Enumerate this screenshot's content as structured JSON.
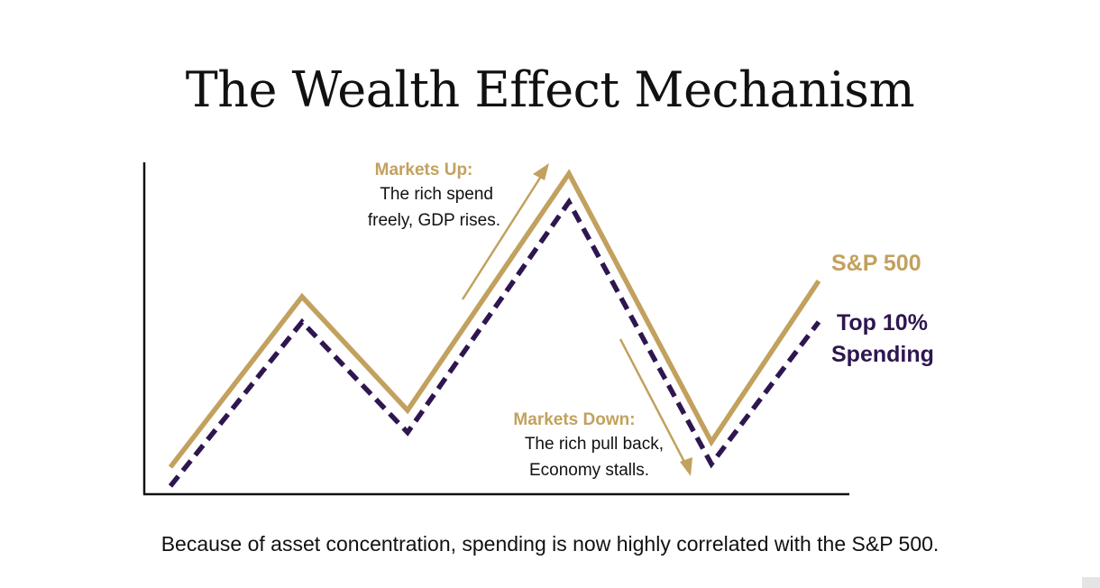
{
  "title": "The Wealth Effect Mechanism",
  "caption": "Because of asset concentration, spending is now highly correlated with the S&P 500.",
  "colors": {
    "sp500": "#C2A15E",
    "spending": "#2E1650",
    "text": "#111111",
    "axis": "#111111"
  },
  "chart_data": {
    "type": "line",
    "series": [
      {
        "name": "S&P 500",
        "style": "solid",
        "values": [
          0.04,
          0.58,
          0.22,
          0.97,
          0.12,
          0.63
        ]
      },
      {
        "name": "Top 10% Spending",
        "style": "dashed",
        "values": [
          -0.02,
          0.5,
          0.15,
          0.88,
          0.05,
          0.5
        ]
      }
    ],
    "legend": [
      {
        "label": "S&P 500",
        "series": "S&P 500"
      },
      {
        "label_lines": [
          "Top 10%",
          "Spending"
        ],
        "series": "Top 10% Spending"
      }
    ],
    "annotations": [
      {
        "id": "markets-up",
        "heading": "Markets Up:",
        "lines": [
          "The rich spend",
          "freely, GDP rises."
        ],
        "arrow": "up"
      },
      {
        "id": "markets-down",
        "heading": "Markets Down:",
        "lines": [
          "The rich pull back,",
          "Economy stalls."
        ],
        "arrow": "down"
      }
    ],
    "xlabel": "",
    "ylabel": "",
    "ylim": [
      0,
      1
    ],
    "grid": false
  }
}
